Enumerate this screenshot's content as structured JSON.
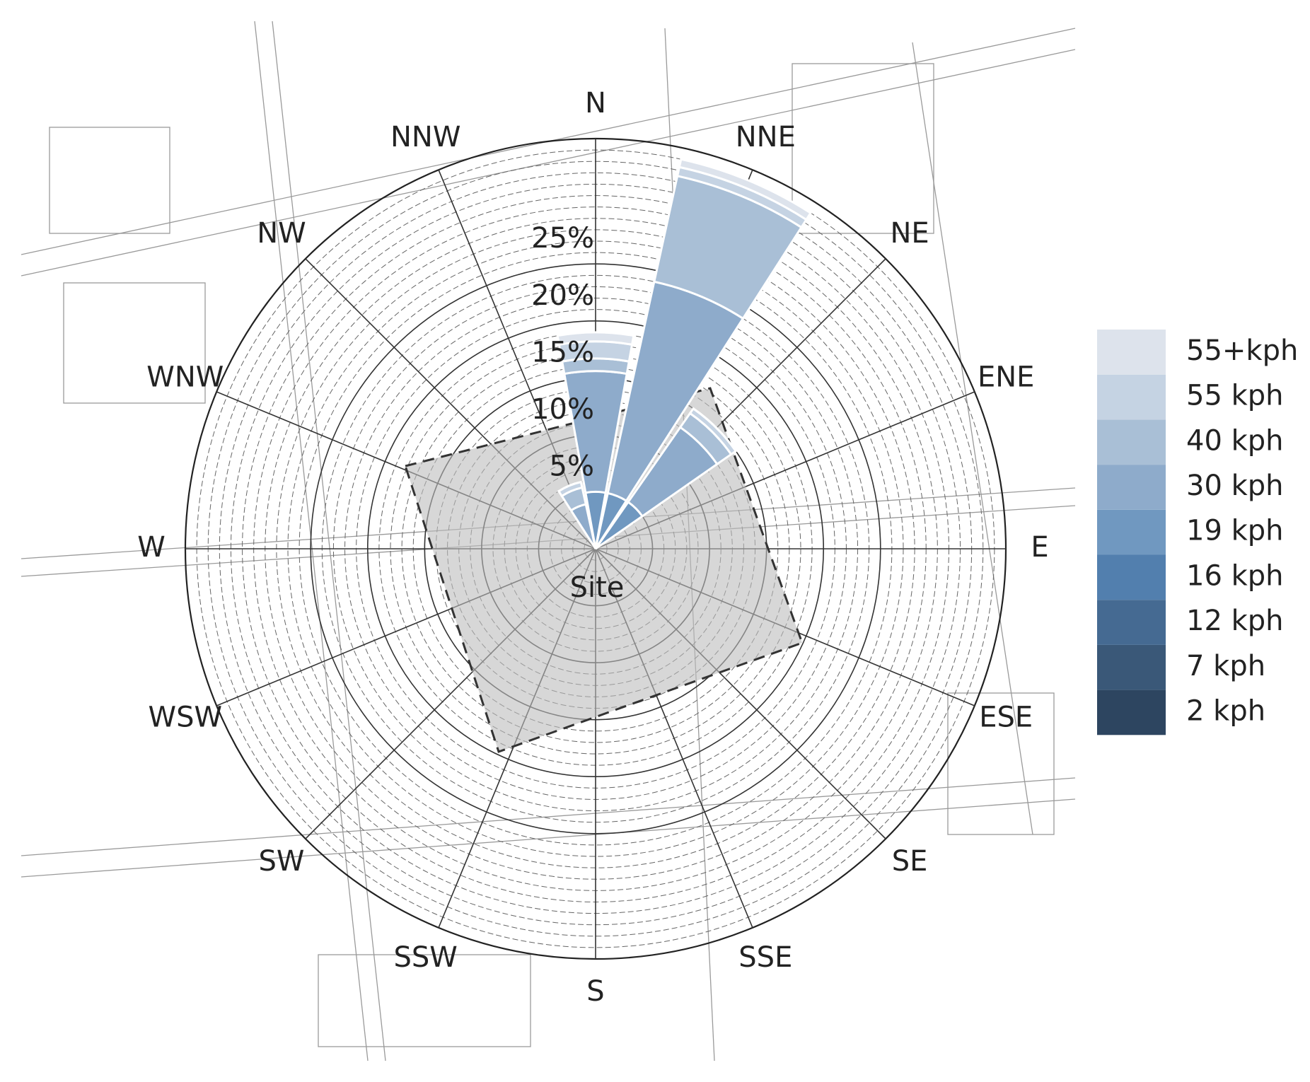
{
  "chart_data": {
    "type": "windrose",
    "categories": [
      "N",
      "NNE",
      "NE",
      "ENE",
      "E",
      "ESE",
      "SE",
      "SSE",
      "S",
      "SSW",
      "SW",
      "WSW",
      "W",
      "WNW",
      "NW",
      "NNW"
    ],
    "series": [
      {
        "name": "2 kph",
        "color": "#2d4560",
        "values": [
          0,
          0,
          0,
          0,
          0,
          0,
          0,
          0,
          0,
          0,
          0,
          0,
          0,
          0,
          0,
          0
        ]
      },
      {
        "name": "7 kph",
        "color": "#3a5878",
        "values": [
          0,
          0,
          0,
          0,
          0,
          0,
          0,
          0,
          0,
          0,
          0,
          0,
          0,
          0,
          0,
          0
        ]
      },
      {
        "name": "12 kph",
        "color": "#456a92",
        "values": [
          0,
          0,
          0,
          0,
          0,
          0,
          0,
          0,
          0,
          0,
          0,
          0,
          0,
          0,
          0,
          0
        ]
      },
      {
        "name": "16 kph",
        "color": "#527fae",
        "values": [
          0,
          0,
          0,
          0,
          0,
          0,
          0,
          0,
          0,
          0,
          0,
          0,
          0,
          0,
          0,
          0
        ]
      },
      {
        "name": "19 kph",
        "color": "#7098c0",
        "values": [
          5,
          5,
          5,
          0,
          0,
          0,
          0,
          0,
          0,
          0,
          0,
          0,
          0,
          0,
          0,
          0
        ]
      },
      {
        "name": "30 kph",
        "color": "#8eabcb",
        "values": [
          10.6,
          19,
          8,
          0,
          0,
          0,
          0,
          0,
          0,
          0,
          0,
          0,
          0,
          0,
          0,
          4
        ]
      },
      {
        "name": "40 kph",
        "color": "#a9bfd6",
        "values": [
          1.1,
          9.5,
          1.5,
          0,
          0,
          0,
          0,
          0,
          0,
          0,
          0,
          0,
          0,
          0,
          0,
          1.5
        ]
      },
      {
        "name": "55 kph",
        "color": "#c5d3e3",
        "values": [
          1.5,
          0.8,
          0.5,
          0,
          0,
          0,
          0,
          0,
          0,
          0,
          0,
          0,
          0,
          0,
          0,
          0.5
        ]
      },
      {
        "name": "55+kph",
        "color": "#dde3ec",
        "values": [
          0.8,
          0.7,
          0,
          0,
          0,
          0,
          0,
          0,
          0,
          0,
          0,
          0,
          0,
          0,
          0,
          0
        ]
      }
    ],
    "rlim": [
      0,
      36
    ],
    "yticks": [
      {
        "value": 5,
        "label": "5%"
      },
      {
        "value": 10,
        "label": "10%"
      },
      {
        "value": 15,
        "label": "15%"
      },
      {
        "value": 20,
        "label": "20%"
      },
      {
        "value": 25,
        "label": "25%"
      }
    ],
    "site_label": "Site"
  }
}
